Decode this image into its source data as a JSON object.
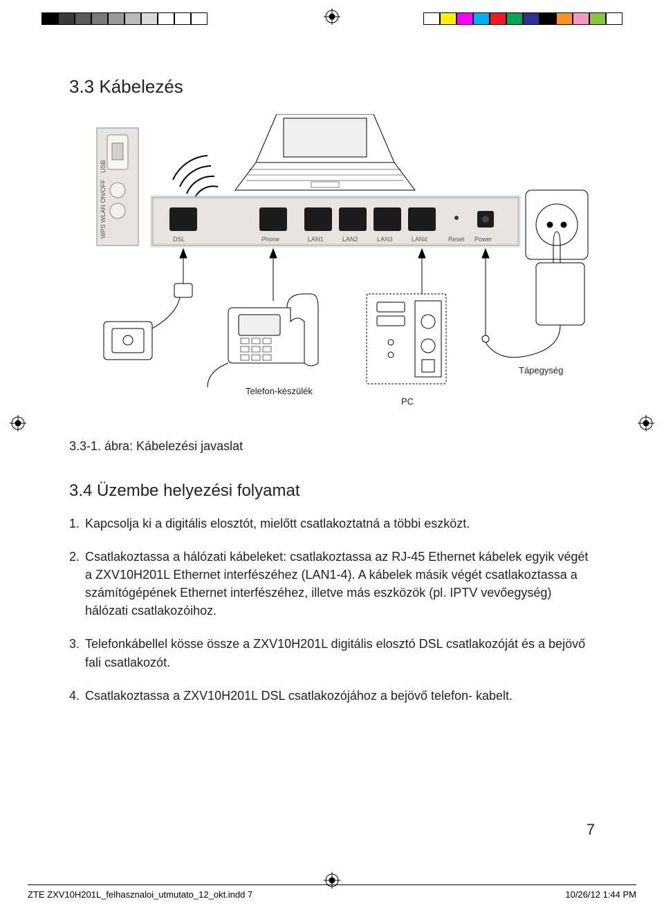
{
  "colorbar": {
    "left": [
      "#000000",
      "#3a3a3a",
      "#5a5a5a",
      "#7a7a7a",
      "#9a9a9a",
      "#bababa",
      "#dadada",
      "#ffffff",
      "#ffffff",
      "#ffffff"
    ],
    "right": [
      "#ffffff",
      "#fff200",
      "#ff00ff",
      "#00aeef",
      "#ed1c24",
      "#00a651",
      "#2e3192",
      "#000000",
      "#f7941d",
      "#f49ac1",
      "#8dc63f",
      "#ffffff"
    ]
  },
  "section": {
    "title": "3.3 Kábelezés",
    "caption": "3.3-1. ábra: Kábelezési javaslat"
  },
  "diagram": {
    "side_panel": {
      "usb_label": "USB",
      "switch_labels": "WPS  WLAN ON/OFF"
    },
    "ports": [
      "DSL",
      "Phone",
      "LAN1",
      "LAN2",
      "LAN3",
      "LAN4",
      "Reset",
      "Power"
    ],
    "labels": {
      "phone_device": "Telefon-készülék",
      "pc": "PC",
      "psu": "Tápegység"
    },
    "colors": {
      "panel_fill": "#e6e4e0",
      "panel_stroke": "#8a8a88",
      "line_stroke": "#000000",
      "inner_shadow": "#c8c6c2",
      "port_fill": "#1c1c1c",
      "laptop_screen": "#f0f0f0"
    }
  },
  "subsection": {
    "title": "3.4 Üzembe helyezési folyamat",
    "steps": [
      "Kapcsolja ki a digitális elosztót, mielőtt csatlakoztatná a többi eszközt.",
      "Csatlakoztassa a hálózati kábeleket: csatlakoztassa az RJ-45 Ethernet kábelek egyik végét a ZXV10H201L Ethernet interfészéhez (LAN1-4). A kábelek másik végét csatlakoztassa a számítógépének Ethernet interfészéhez, illetve más eszközök (pl. IPTV vevőegység) hálózati csatlakozóihoz.",
      "Telefonkábellel kösse össze a ZXV10H201L digitális elosztó DSL csatlakozóját és a bejövő fali csatlakozót.",
      "Csatlakoztassa a ZXV10H201L DSL csatlakozójához a bejövő telefon- kabelt."
    ]
  },
  "page_number": "7",
  "footer": {
    "left": "ZTE ZXV10H201L_felhasznaloi_utmutato_12_okt.indd   7",
    "right": "10/26/12   1:44 PM"
  }
}
